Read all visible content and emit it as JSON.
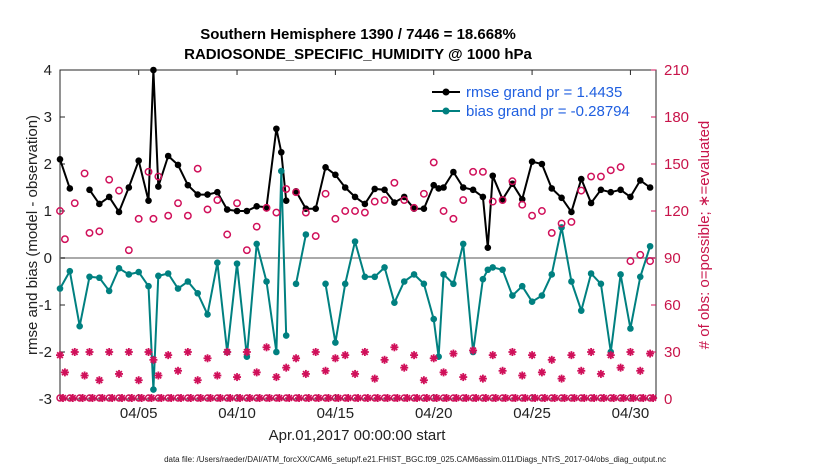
{
  "chart_data": {
    "type": "line",
    "title": "Southern Hemisphere 1390 / 7446 = 18.668%",
    "subtitle": "RADIOSONDE_SPECIFIC_HUMIDITY @ 1000 hPa",
    "xlabel": "Apr.01,2017 00:00:00 start",
    "ylabel": "rmse and bias (model - observation)",
    "y2label": "# of obs: o=possible; ∗=evaluated",
    "footnote": "data file: /Users/raeder/DAI/ATM_forcXX/CAM6_setup/f.e21.FHIST_BGC.f09_025.CAM6assim.011/Diags_NTrS_2017-04/obs_diag_output.nc",
    "xlim": [
      1,
      31.3
    ],
    "ylim": [
      -3,
      4
    ],
    "y2lim": [
      0,
      210
    ],
    "xticks": [
      5,
      10,
      15,
      20,
      25,
      30
    ],
    "xtick_labels": [
      "04/05",
      "04/10",
      "04/15",
      "04/20",
      "04/25",
      "04/30"
    ],
    "yticks": [
      -3,
      -2,
      -1,
      0,
      1,
      2,
      3,
      4
    ],
    "ytick_labels": [
      "-3",
      "-2",
      "-1",
      "0",
      "1",
      "2",
      "3",
      "4"
    ],
    "y2ticks": [
      0,
      30,
      60,
      90,
      120,
      150,
      180,
      210
    ],
    "y2tick_labels": [
      "0",
      "30",
      "60",
      "90",
      "120",
      "150",
      "180",
      "210"
    ],
    "zero_line": 0,
    "legend_location": "top-right",
    "colors": {
      "rmse": "#000000",
      "bias": "#008080",
      "obs": "#d0105a",
      "zero": "#aaaaaa"
    },
    "series": [
      {
        "name": "rmse",
        "legend": "rmse grand pr = 1.4435",
        "color": "#000000",
        "x": [
          1.0,
          1.5,
          2.0,
          2.5,
          3.0,
          3.5,
          4.0,
          4.5,
          5.0,
          5.5,
          5.75,
          6.0,
          6.5,
          7.0,
          7.5,
          8.0,
          8.5,
          9.0,
          9.5,
          10.0,
          10.5,
          11.0,
          11.5,
          12.0,
          12.25,
          12.5,
          12.75,
          13.0,
          13.5,
          14.0,
          14.5,
          15.0,
          15.5,
          16.0,
          16.5,
          17.0,
          17.5,
          18.0,
          18.5,
          19.0,
          19.5,
          20.0,
          20.25,
          20.5,
          21.0,
          21.5,
          22.0,
          22.5,
          22.75,
          23.0,
          23.5,
          24.0,
          24.5,
          25.0,
          25.5,
          26.0,
          26.5,
          27.0,
          27.5,
          28.0,
          28.5,
          29.0,
          29.5,
          30.0,
          30.5,
          31.0
        ],
        "values": [
          2.1,
          1.48,
          null,
          1.45,
          1.15,
          1.3,
          0.98,
          1.5,
          2.07,
          1.22,
          4.0,
          1.52,
          2.17,
          1.98,
          1.55,
          1.35,
          1.35,
          1.4,
          1.03,
          1.0,
          1.0,
          1.1,
          1.08,
          2.75,
          2.25,
          1.22,
          null,
          1.42,
          1.05,
          1.05,
          1.93,
          1.77,
          1.5,
          1.3,
          1.15,
          1.47,
          1.45,
          1.18,
          1.3,
          1.05,
          1.05,
          1.55,
          1.48,
          1.5,
          1.83,
          1.5,
          1.45,
          1.3,
          0.22,
          1.75,
          1.25,
          1.58,
          1.25,
          2.05,
          2.0,
          1.48,
          1.28,
          0.98,
          1.68,
          1.17,
          1.45,
          1.4,
          1.45,
          1.3,
          1.65,
          1.5
        ]
      },
      {
        "name": "bias",
        "legend": "bias grand pr = -0.28794",
        "color": "#008080",
        "x": [
          1.0,
          1.5,
          2.0,
          2.5,
          3.0,
          3.5,
          4.0,
          4.5,
          5.0,
          5.5,
          5.75,
          6.0,
          6.5,
          7.0,
          7.5,
          8.0,
          8.5,
          9.0,
          9.5,
          10.0,
          10.5,
          11.0,
          11.5,
          12.0,
          12.25,
          12.5,
          12.75,
          13.0,
          13.5,
          14.0,
          14.5,
          15.0,
          15.5,
          16.0,
          16.5,
          17.0,
          17.5,
          18.0,
          18.5,
          19.0,
          19.5,
          20.0,
          20.25,
          20.5,
          21.0,
          21.5,
          22.0,
          22.5,
          22.75,
          23.0,
          23.5,
          24.0,
          24.5,
          25.0,
          25.5,
          26.0,
          26.5,
          27.0,
          27.5,
          28.0,
          28.5,
          29.0,
          29.5,
          30.0,
          30.5,
          31.0
        ],
        "values": [
          -0.65,
          -0.28,
          -1.45,
          -0.4,
          -0.42,
          -0.7,
          -0.22,
          -0.35,
          -0.3,
          -0.6,
          -2.8,
          -0.38,
          -0.33,
          -0.65,
          -0.5,
          -0.75,
          -1.2,
          -0.1,
          -2.0,
          -0.12,
          -2.1,
          0.3,
          -0.5,
          -2.0,
          1.85,
          -1.65,
          null,
          -0.55,
          0.5,
          null,
          -0.55,
          -1.8,
          -0.55,
          0.35,
          -0.4,
          -0.4,
          -0.2,
          -0.95,
          -0.5,
          -0.35,
          -0.55,
          -1.3,
          -2.1,
          -0.35,
          -0.55,
          0.3,
          -2.0,
          -0.45,
          -0.25,
          -0.2,
          -0.25,
          -0.8,
          -0.6,
          -0.93,
          -0.8,
          -0.35,
          0.65,
          -0.5,
          -1.12,
          -0.33,
          -0.55,
          -2.0,
          -0.35,
          -1.5,
          -0.4,
          0.25
        ]
      },
      {
        "name": "obs possible",
        "marker": "o",
        "color": "#d0105a",
        "x": [
          1.0,
          1.25,
          1.75,
          2.25,
          2.5,
          3.0,
          3.5,
          4.0,
          4.5,
          5.0,
          5.5,
          5.75,
          6.0,
          6.5,
          7.0,
          7.5,
          8.0,
          8.5,
          9.0,
          9.5,
          10.0,
          10.5,
          11.0,
          11.5,
          12.0,
          12.5,
          13.0,
          13.5,
          14.0,
          14.5,
          15.0,
          15.5,
          16.0,
          16.5,
          17.0,
          17.5,
          18.0,
          18.5,
          19.0,
          19.5,
          20.0,
          20.5,
          21.0,
          21.5,
          22.0,
          22.5,
          23.0,
          23.5,
          24.0,
          24.5,
          25.0,
          25.5,
          26.0,
          26.5,
          27.0,
          27.5,
          28.0,
          28.5,
          29.0,
          29.5,
          30.0,
          30.5,
          31.0
        ],
        "values": [
          120,
          102,
          125,
          144,
          106,
          107,
          140,
          133,
          95,
          115,
          145,
          115,
          142,
          117,
          125,
          117,
          147,
          121,
          127,
          105,
          125,
          95,
          110,
          122,
          119,
          134,
          132,
          119,
          104,
          131,
          115,
          120,
          120,
          119,
          126,
          127,
          138,
          127,
          122,
          131,
          151,
          120,
          115,
          127,
          145,
          145,
          126,
          127,
          139,
          124,
          117,
          120,
          106,
          112,
          113,
          133,
          142,
          142,
          146,
          148,
          88,
          92,
          88
        ]
      },
      {
        "name": "obs evaluated",
        "marker": "*",
        "color": "#d0105a",
        "x": [
          1.0,
          1.25,
          1.75,
          2.25,
          2.5,
          3.0,
          3.5,
          4.0,
          4.5,
          5.0,
          5.5,
          5.75,
          6.0,
          6.5,
          7.0,
          7.5,
          8.0,
          8.5,
          9.0,
          9.5,
          10.0,
          10.5,
          11.0,
          11.5,
          12.0,
          12.5,
          13.0,
          13.5,
          14.0,
          14.5,
          15.0,
          15.5,
          16.0,
          16.5,
          17.0,
          17.5,
          18.0,
          18.5,
          19.0,
          19.5,
          20.0,
          20.5,
          21.0,
          21.5,
          22.0,
          22.5,
          23.0,
          23.5,
          24.0,
          24.5,
          25.0,
          25.5,
          26.0,
          26.5,
          27.0,
          27.5,
          28.0,
          28.5,
          29.0,
          29.5,
          30.0,
          30.5,
          31.0
        ],
        "values": [
          28,
          17,
          30,
          15,
          30,
          12,
          30,
          16,
          30,
          12,
          30,
          25,
          15,
          28,
          18,
          30,
          12,
          26,
          15,
          30,
          14,
          30,
          17,
          33,
          14,
          20,
          26,
          16,
          30,
          18,
          26,
          28,
          16,
          30,
          13,
          25,
          33,
          20,
          28,
          12,
          26,
          17,
          29,
          14,
          31,
          13,
          28,
          18,
          30,
          15,
          28,
          17,
          25,
          13,
          28,
          18,
          30,
          16,
          28,
          20,
          30,
          18,
          29
        ]
      },
      {
        "name": "obs zero baseline",
        "marker": "o*",
        "color": "#d0105a",
        "x": [
          1.0,
          1.5,
          2.0,
          2.5,
          3.0,
          3.5,
          4.0,
          4.5,
          5.0,
          5.5,
          6.0,
          6.5,
          7.0,
          7.5,
          8.0,
          8.5,
          9.0,
          9.5,
          10.0,
          10.5,
          11.0,
          11.5,
          12.0,
          12.5,
          13.0,
          13.5,
          14.0,
          14.5,
          15.0,
          15.5,
          16.0,
          16.5,
          17.0,
          17.5,
          18.0,
          18.5,
          19.0,
          19.5,
          20.0,
          20.5,
          21.0,
          21.5,
          22.0,
          22.5,
          23.0,
          23.5,
          24.0,
          24.5,
          25.0,
          25.5,
          26.0,
          26.5,
          27.0,
          27.5,
          28.0,
          28.5,
          29.0,
          29.5,
          30.0,
          30.5,
          31.0
        ],
        "values": [
          0,
          0,
          0,
          0,
          0,
          0,
          0,
          0,
          0,
          0,
          0,
          0,
          0,
          0,
          0,
          0,
          0,
          0,
          0,
          0,
          0,
          0,
          0,
          0,
          0,
          0,
          0,
          0,
          0,
          0,
          0,
          0,
          0,
          0,
          0,
          0,
          0,
          0,
          0,
          0,
          0,
          0,
          0,
          0,
          0,
          0,
          0,
          0,
          0,
          0,
          0,
          0,
          0,
          0,
          0,
          0,
          0,
          0,
          0,
          0,
          0
        ]
      }
    ]
  }
}
